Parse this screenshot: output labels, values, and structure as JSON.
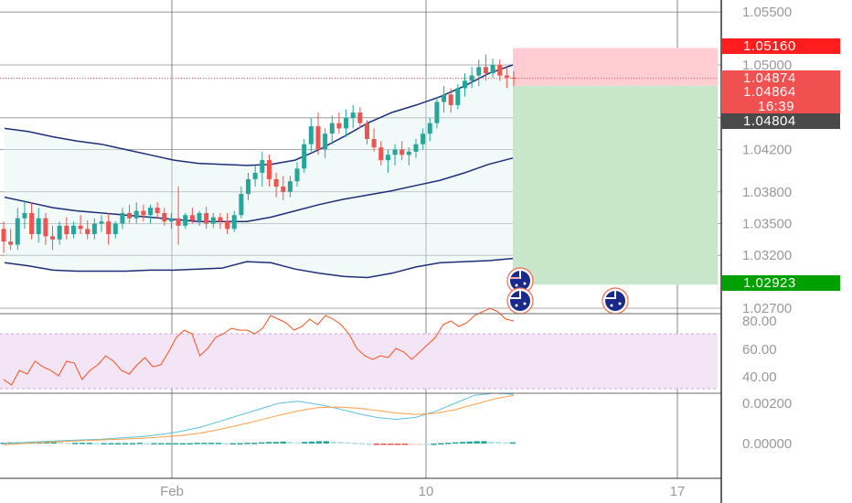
{
  "price_axis": {
    "labels": [
      "1.05500",
      "1.05000",
      "1.04200",
      "1.03800",
      "1.03500",
      "1.03200",
      "1.02700"
    ],
    "values": [
      1.055,
      1.05,
      1.042,
      1.038,
      1.035,
      1.032,
      1.027
    ]
  },
  "price_tags": {
    "stop_loss": "1.05160",
    "last_price": "1.04874",
    "bid": "1.04864",
    "countdown": "16:39",
    "entry": "1.04804",
    "take_profit": "1.02923"
  },
  "rsi_axis": {
    "labels": [
      "80.00",
      "60.00",
      "40.00"
    ],
    "values": [
      80,
      60,
      40
    ]
  },
  "macd_axis": {
    "labels": [
      "0.00200",
      "0.00000"
    ],
    "values": [
      0.002,
      0.0
    ]
  },
  "time_axis": {
    "labels": [
      "Feb",
      "10",
      "17"
    ]
  },
  "colors": {
    "up": "#26a69a",
    "down": "#ef5350",
    "stop_zone": "#ffcdd2",
    "target_zone": "#c8e6c9",
    "band": "#1e2f7a",
    "rsi": "#f4511e",
    "rsi_band": "#f3e5f5",
    "macd": "#5bc0de",
    "signal": "#ff9f43",
    "tag_red": "#ff1d1d",
    "tag_green": "#00a000",
    "tag_dark": "#4a4a4a"
  },
  "chart_data": {
    "type": "candlestick",
    "series": [
      {
        "name": "price",
        "values": [
          [
            1.0345,
            1.0352,
            1.0322,
            1.0333
          ],
          [
            1.0333,
            1.0345,
            1.0325,
            1.033
          ],
          [
            1.033,
            1.0365,
            1.0325,
            1.0355
          ],
          [
            1.0355,
            1.0372,
            1.0345,
            1.036
          ],
          [
            1.036,
            1.037,
            1.0335,
            1.034
          ],
          [
            1.034,
            1.0365,
            1.0332,
            1.0355
          ],
          [
            1.0355,
            1.036,
            1.033,
            1.0338
          ],
          [
            1.0338,
            1.0348,
            1.0325,
            1.0335
          ],
          [
            1.0335,
            1.0352,
            1.033,
            1.0348
          ],
          [
            1.0348,
            1.0356,
            1.0335,
            1.034
          ],
          [
            1.034,
            1.0352,
            1.0336,
            1.0348
          ],
          [
            1.0348,
            1.0358,
            1.034,
            1.0345
          ],
          [
            1.0345,
            1.0353,
            1.0335,
            1.034
          ],
          [
            1.034,
            1.0355,
            1.0335,
            1.035
          ],
          [
            1.035,
            1.0358,
            1.0342,
            1.0352
          ],
          [
            1.0352,
            1.036,
            1.033,
            1.034
          ],
          [
            1.034,
            1.0352,
            1.0336,
            1.035
          ],
          [
            1.035,
            1.0365,
            1.0345,
            1.036
          ],
          [
            1.036,
            1.0368,
            1.035,
            1.0355
          ],
          [
            1.0355,
            1.037,
            1.035,
            1.0362
          ],
          [
            1.0362,
            1.0368,
            1.0352,
            1.0358
          ],
          [
            1.0358,
            1.0368,
            1.035,
            1.0365
          ],
          [
            1.0365,
            1.037,
            1.0355,
            1.036
          ],
          [
            1.036,
            1.0365,
            1.0348,
            1.0352
          ],
          [
            1.0352,
            1.036,
            1.0345,
            1.0355
          ],
          [
            1.0355,
            1.0385,
            1.033,
            1.0348
          ],
          [
            1.0348,
            1.036,
            1.0345,
            1.0358
          ],
          [
            1.0358,
            1.0365,
            1.035,
            1.0353
          ],
          [
            1.0353,
            1.0362,
            1.0348,
            1.036
          ],
          [
            1.036,
            1.0366,
            1.0345,
            1.035
          ],
          [
            1.035,
            1.036,
            1.0346,
            1.0356
          ],
          [
            1.0356,
            1.036,
            1.0345,
            1.0352
          ],
          [
            1.0352,
            1.036,
            1.034,
            1.0345
          ],
          [
            1.0345,
            1.0362,
            1.0342,
            1.0358
          ],
          [
            1.0358,
            1.0385,
            1.0355,
            1.0378
          ],
          [
            1.0378,
            1.0398,
            1.0372,
            1.0392
          ],
          [
            1.0392,
            1.0405,
            1.0385,
            1.0398
          ],
          [
            1.0398,
            1.0418,
            1.0385,
            1.041
          ],
          [
            1.041,
            1.0415,
            1.0385,
            1.0392
          ],
          [
            1.0392,
            1.0398,
            1.0375,
            1.0385
          ],
          [
            1.0385,
            1.0395,
            1.0372,
            1.038
          ],
          [
            1.038,
            1.0395,
            1.0375,
            1.039
          ],
          [
            1.039,
            1.0408,
            1.0385,
            1.0402
          ],
          [
            1.0402,
            1.043,
            1.0398,
            1.0425
          ],
          [
            1.0425,
            1.045,
            1.0418,
            1.0442
          ],
          [
            1.0442,
            1.0455,
            1.0415,
            1.042
          ],
          [
            1.042,
            1.044,
            1.0412,
            1.0435
          ],
          [
            1.0435,
            1.0452,
            1.0425,
            1.0445
          ],
          [
            1.0445,
            1.0455,
            1.0435,
            1.044
          ],
          [
            1.044,
            1.0458,
            1.0432,
            1.045
          ],
          [
            1.045,
            1.0462,
            1.044,
            1.0455
          ],
          [
            1.0455,
            1.046,
            1.044,
            1.0445
          ],
          [
            1.0445,
            1.0448,
            1.0425,
            1.043
          ],
          [
            1.043,
            1.044,
            1.0418,
            1.0422
          ],
          [
            1.0422,
            1.0428,
            1.0405,
            1.041
          ],
          [
            1.041,
            1.042,
            1.0398,
            1.0415
          ],
          [
            1.0415,
            1.0425,
            1.0405,
            1.042
          ],
          [
            1.042,
            1.0428,
            1.041,
            1.0415
          ],
          [
            1.0415,
            1.0422,
            1.0405,
            1.0418
          ],
          [
            1.0418,
            1.043,
            1.0412,
            1.0425
          ],
          [
            1.0425,
            1.044,
            1.042,
            1.0435
          ],
          [
            1.0435,
            1.045,
            1.0428,
            1.0445
          ],
          [
            1.0445,
            1.047,
            1.044,
            1.0465
          ],
          [
            1.0465,
            1.048,
            1.0455,
            1.0472
          ],
          [
            1.0472,
            1.0478,
            1.0455,
            1.0462
          ],
          [
            1.0462,
            1.0482,
            1.0458,
            1.0478
          ],
          [
            1.0478,
            1.0492,
            1.047,
            1.0485
          ],
          [
            1.0485,
            1.0498,
            1.0478,
            1.049
          ],
          [
            1.049,
            1.0505,
            1.048,
            1.0498
          ],
          [
            1.0498,
            1.051,
            1.0485,
            1.0492
          ],
          [
            1.0492,
            1.0506,
            1.0488,
            1.05
          ],
          [
            1.05,
            1.0505,
            1.0485,
            1.049
          ],
          [
            1.049,
            1.0498,
            1.0478,
            1.0488
          ],
          [
            1.0488,
            1.0494,
            1.048,
            1.0487
          ]
        ]
      },
      {
        "name": "upper_band",
        "values": [
          1.044,
          1.0437,
          1.0432,
          1.0428,
          1.0425,
          1.042,
          1.0415,
          1.041,
          1.0407,
          1.0406,
          1.0405,
          1.0406,
          1.041,
          1.042,
          1.0432,
          1.0445,
          1.0455,
          1.0462,
          1.047,
          1.048,
          1.0492,
          1.05
        ]
      },
      {
        "name": "middle_band",
        "values": [
          1.0375,
          1.037,
          1.0365,
          1.0362,
          1.036,
          1.0358,
          1.0356,
          1.0354,
          1.0352,
          1.0352,
          1.0352,
          1.0356,
          1.0362,
          1.0368,
          1.0373,
          1.0377,
          1.0381,
          1.0386,
          1.0391,
          1.0398,
          1.0406,
          1.0412
        ]
      },
      {
        "name": "lower_band",
        "values": [
          1.0313,
          1.031,
          1.0306,
          1.0305,
          1.0305,
          1.0305,
          1.0306,
          1.0306,
          1.0307,
          1.0308,
          1.0314,
          1.0313,
          1.0307,
          1.0303,
          1.03,
          1.0299,
          1.0303,
          1.0309,
          1.0313,
          1.0314,
          1.0315,
          1.0317
        ]
      },
      {
        "name": "rsi",
        "values": [
          45,
          42,
          50,
          48,
          55,
          52,
          50,
          47,
          55,
          54,
          45,
          50,
          53,
          58,
          55,
          50,
          48,
          53,
          57,
          52,
          53,
          60,
          68,
          72,
          70,
          58,
          62,
          68,
          70,
          73,
          72,
          72,
          70,
          73,
          80,
          78,
          76,
          72,
          74,
          78,
          75,
          80,
          78,
          75,
          70,
          62,
          58,
          56,
          58,
          57,
          62,
          60,
          56,
          60,
          64,
          68,
          75,
          77,
          74,
          76,
          80,
          82,
          84,
          82,
          78,
          77
        ],
        "ylim": [
          30,
          85
        ]
      },
      {
        "name": "macd",
        "values": [
          0.0,
          5e-05,
          0.0001,
          0.00014,
          0.00018,
          0.00022,
          0.00028,
          0.00034,
          0.00045,
          0.0006,
          0.0008,
          0.0011,
          0.0014,
          0.0017,
          0.002,
          0.0021,
          0.00195,
          0.00175,
          0.0015,
          0.0013,
          0.0012,
          0.0013,
          0.0016,
          0.002,
          0.0024,
          0.0025,
          0.00245
        ]
      },
      {
        "name": "signal",
        "values": [
          -5e-05,
          0.0,
          5e-05,
          0.0001,
          0.00014,
          0.00018,
          0.00022,
          0.00026,
          0.00032,
          0.0004,
          0.00052,
          0.0007,
          0.00092,
          0.00115,
          0.0014,
          0.00162,
          0.00178,
          0.00182,
          0.00176,
          0.00165,
          0.00152,
          0.00145,
          0.0015,
          0.00168,
          0.00195,
          0.00222,
          0.0024
        ]
      },
      {
        "name": "histogram",
        "values": [
          2e-05,
          3e-05,
          3e-05,
          2e-05,
          3e-05,
          3e-05,
          4e-05,
          4e-05,
          3e-05,
          2e-05,
          2e-05,
          2e-05,
          2e-05,
          1e-05,
          1e-05,
          1e-05,
          1e-05,
          1e-05,
          1e-05,
          2e-05,
          1e-05,
          1e-05,
          1e-05,
          1e-05,
          1e-05,
          1e-05,
          1e-05,
          2e-05,
          2e-05,
          2e-05,
          2e-05,
          1e-05,
          1e-05,
          1e-05,
          2e-05,
          2e-05,
          3e-05,
          4e-05,
          4e-05,
          5e-05,
          4e-05,
          3e-05,
          4e-05,
          5e-05,
          6e-05,
          6e-05,
          5e-05,
          4e-05,
          3e-05,
          2e-05,
          1e-05,
          0.0,
          -1e-05,
          -2e-05,
          -3e-05,
          -3e-05,
          -3e-05,
          -2e-05,
          -1e-05,
          0.0,
          0.0,
          1e-05,
          2e-05,
          3e-05,
          4e-05,
          5e-05,
          6e-05,
          6e-05,
          5e-05,
          4e-05,
          3e-05,
          3e-05
        ]
      }
    ],
    "position": {
      "entry": 1.04804,
      "stop": 1.0516,
      "target": 1.02923
    },
    "ylim": [
      1.0255,
      1.0575
    ],
    "x_labels": [
      "Feb",
      "10",
      "17"
    ],
    "legend": "none",
    "grid": true
  }
}
